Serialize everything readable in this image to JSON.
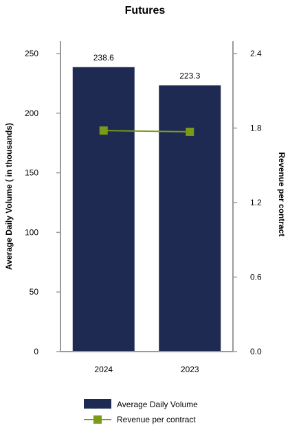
{
  "chart_data": {
    "type": "bar",
    "title": "Futures",
    "categories": [
      "2024",
      "2023"
    ],
    "series": [
      {
        "name": "Average Daily Volume",
        "type": "bar",
        "axis": "left",
        "values": [
          238.6,
          223.3
        ],
        "color": "#1f2a52"
      },
      {
        "name": "Revenue per contract",
        "type": "line",
        "axis": "right",
        "values": [
          1.78,
          1.77
        ],
        "color": "#7a9a1a"
      }
    ],
    "data_labels": [
      "238.6",
      "223.3"
    ],
    "ylabel": "Average Daily Volume ( in thousands)",
    "y2label": "Revenue per contract",
    "ylim": [
      0,
      250
    ],
    "y2lim": [
      0,
      2.4
    ],
    "yticks": [
      "0",
      "50",
      "100",
      "150",
      "200",
      "250"
    ],
    "y2ticks": [
      "0.0",
      "0.6",
      "1.2",
      "1.8",
      "2.4"
    ],
    "grid": false,
    "legend_position": "bottom"
  }
}
